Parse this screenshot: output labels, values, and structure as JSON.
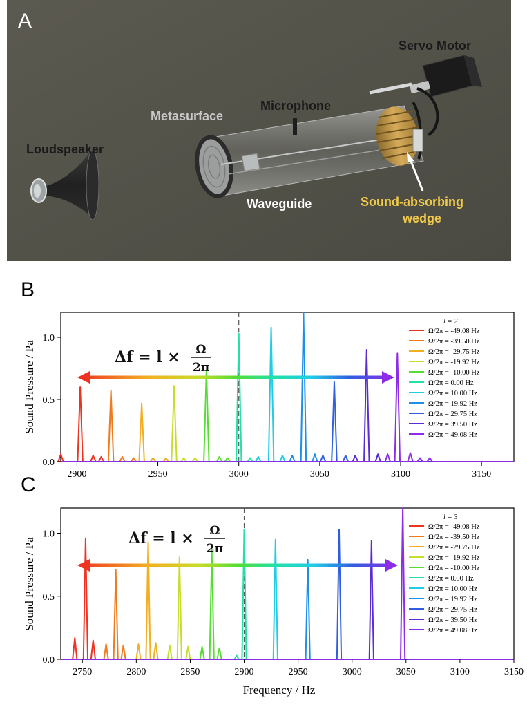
{
  "panels": {
    "a": {
      "letter": "A",
      "labels": {
        "servo": "Servo Motor",
        "microphone": "Microphone",
        "metasurface": "Metasurface",
        "loudspeaker": "Loudspeaker",
        "waveguide": "Waveguide",
        "wedge_line1": "Sound-absorbing",
        "wedge_line2": "wedge"
      }
    },
    "b": {
      "letter": "B"
    },
    "c": {
      "letter": "C"
    }
  },
  "shared": {
    "ylabel": "Sound Pressure / Pa",
    "xlabel": "Frequency / Hz",
    "equation": {
      "prefix": "Δf = l ×",
      "numerator": "Ω",
      "denominator": "2π"
    },
    "series_colors": [
      "#ee3322",
      "#f07b1e",
      "#f3ae22",
      "#c8dc2a",
      "#55dd33",
      "#22e0a8",
      "#22cce6",
      "#1d8fe8",
      "#2f5fe0",
      "#5a2cd6",
      "#8c2ce8"
    ],
    "series_names": [
      "Ω/2π = -49.08 Hz",
      "Ω/2π = -39.50 Hz",
      "Ω/2π = -29.75 Hz",
      "Ω/2π = -19.92 Hz",
      "Ω/2π = -10.00 Hz",
      "Ω/2π = 0.00 Hz",
      "Ω/2π = 10.00 Hz",
      "Ω/2π = 19.92 Hz",
      "Ω/2π = 29.75 Hz",
      "Ω/2π = 39.50 Hz",
      "Ω/2π = 49.08 Hz"
    ]
  },
  "chart_data": [
    {
      "type": "line",
      "legend_title": "l = 2",
      "xlim": [
        2890,
        3170
      ],
      "ylim": [
        0,
        1.2
      ],
      "xticks": [
        2900,
        2950,
        3000,
        3050,
        3100,
        3150
      ],
      "yticks": [
        0.0,
        0.5,
        1.0
      ],
      "center_frequency": 3000,
      "series": [
        {
          "name": "Ω/2π = -49.08 Hz",
          "peaks": [
            [
              2902,
              0.6
            ],
            [
              2890,
              0.06
            ],
            [
              2910,
              0.05
            ],
            [
              2915,
              0.04
            ]
          ]
        },
        {
          "name": "Ω/2π = -39.50 Hz",
          "peaks": [
            [
              2921,
              0.57
            ],
            [
              2928,
              0.04
            ],
            [
              2935,
              0.03
            ]
          ]
        },
        {
          "name": "Ω/2π = -29.75 Hz",
          "peaks": [
            [
              2940,
              0.47
            ],
            [
              2947,
              0.03
            ],
            [
              2955,
              0.03
            ]
          ]
        },
        {
          "name": "Ω/2π = -19.92 Hz",
          "peaks": [
            [
              2960,
              0.61
            ],
            [
              2966,
              0.03
            ],
            [
              2973,
              0.03
            ]
          ]
        },
        {
          "name": "Ω/2π = -10.00 Hz",
          "peaks": [
            [
              2980,
              0.73
            ],
            [
              2988,
              0.04
            ],
            [
              2993,
              0.03
            ]
          ]
        },
        {
          "name": "Ω/2π = 0.00 Hz",
          "peaks": [
            [
              3000,
              1.03
            ],
            [
              3007,
              0.03
            ]
          ]
        },
        {
          "name": "Ω/2π = 10.00 Hz",
          "peaks": [
            [
              3020,
              1.08
            ],
            [
              3012,
              0.04
            ],
            [
              3027,
              0.05
            ]
          ]
        },
        {
          "name": "Ω/2π = 19.92 Hz",
          "peaks": [
            [
              3040,
              1.2
            ],
            [
              3033,
              0.05
            ],
            [
              3047,
              0.06
            ]
          ]
        },
        {
          "name": "Ω/2π = 29.75 Hz",
          "peaks": [
            [
              3059,
              0.64
            ],
            [
              3052,
              0.05
            ],
            [
              3066,
              0.05
            ]
          ]
        },
        {
          "name": "Ω/2π = 39.50 Hz",
          "peaks": [
            [
              3079,
              0.9
            ],
            [
              3072,
              0.05
            ],
            [
              3086,
              0.06
            ]
          ]
        },
        {
          "name": "Ω/2π = 49.08 Hz",
          "peaks": [
            [
              3098,
              0.87
            ],
            [
              3092,
              0.06
            ],
            [
              3106,
              0.07
            ],
            [
              3112,
              0.03
            ],
            [
              3118,
              0.03
            ]
          ]
        }
      ]
    },
    {
      "type": "line",
      "legend_title": "l = 3",
      "xlim": [
        2730,
        3150
      ],
      "ylim": [
        0,
        1.2
      ],
      "xticks": [
        2750,
        2800,
        2850,
        2900,
        2950,
        3000,
        3050,
        3100,
        3150
      ],
      "yticks": [
        0.0,
        0.5,
        1.0
      ],
      "center_frequency": 2900,
      "series": [
        {
          "name": "Ω/2π = -49.08 Hz",
          "peaks": [
            [
              2753,
              0.96
            ],
            [
              2743,
              0.17
            ],
            [
              2760,
              0.15
            ]
          ]
        },
        {
          "name": "Ω/2π = -39.50 Hz",
          "peaks": [
            [
              2781,
              0.71
            ],
            [
              2772,
              0.12
            ],
            [
              2788,
              0.11
            ]
          ]
        },
        {
          "name": "Ω/2π = -29.75 Hz",
          "peaks": [
            [
              2811,
              0.93
            ],
            [
              2802,
              0.12
            ],
            [
              2818,
              0.13
            ]
          ]
        },
        {
          "name": "Ω/2π = -19.92 Hz",
          "peaks": [
            [
              2840,
              0.81
            ],
            [
              2831,
              0.11
            ],
            [
              2848,
              0.1
            ]
          ]
        },
        {
          "name": "Ω/2π = -10.00 Hz",
          "peaks": [
            [
              2870,
              0.87
            ],
            [
              2861,
              0.1
            ],
            [
              2877,
              0.09
            ]
          ]
        },
        {
          "name": "Ω/2π = 0.00 Hz",
          "peaks": [
            [
              2900,
              1.03
            ],
            [
              2893,
              0.03
            ]
          ]
        },
        {
          "name": "Ω/2π = 10.00 Hz",
          "peaks": [
            [
              2929,
              0.95
            ]
          ]
        },
        {
          "name": "Ω/2π = 19.92 Hz",
          "peaks": [
            [
              2959,
              0.79
            ]
          ]
        },
        {
          "name": "Ω/2π = 29.75 Hz",
          "peaks": [
            [
              2988,
              1.03
            ]
          ]
        },
        {
          "name": "Ω/2π = 39.50 Hz",
          "peaks": [
            [
              3018,
              0.94
            ]
          ]
        },
        {
          "name": "Ω/2π = 49.08 Hz",
          "peaks": [
            [
              3047,
              1.2
            ]
          ]
        }
      ]
    }
  ]
}
